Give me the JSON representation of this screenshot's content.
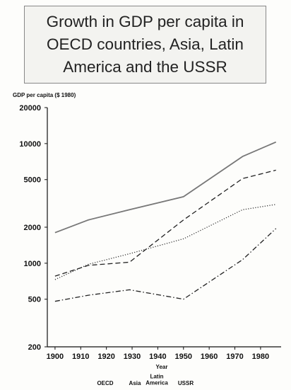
{
  "chart_data": {
    "type": "line",
    "title": "Growth in GDP per capita in OECD countries, Asia, Latin America and the USSR",
    "ylabel": "GDP per capita ($ 1980)",
    "xlabel": "Year",
    "y_scale": "log",
    "ylim": [
      200,
      20000
    ],
    "xlim": [
      1897,
      1988
    ],
    "y_ticks": [
      200,
      500,
      1000,
      2000,
      5000,
      10000,
      20000
    ],
    "x_ticks": [
      1900,
      1910,
      1920,
      1930,
      1940,
      1950,
      1960,
      1970,
      1980
    ],
    "legend_placement": "bottom",
    "series": [
      {
        "name": "OECD",
        "style": "solid",
        "color": "#777777",
        "x": [
          1900,
          1913,
          1929,
          1950,
          1973,
          1986
        ],
        "y": [
          1800,
          2300,
          2800,
          3600,
          7800,
          10300
        ]
      },
      {
        "name": "Asia",
        "style": "dashed",
        "color": "#222222",
        "x": [
          1900,
          1913,
          1929,
          1950,
          1973,
          1986
        ],
        "y": [
          780,
          960,
          1020,
          2300,
          5100,
          6000
        ]
      },
      {
        "name": "Latin America",
        "style": "dotted",
        "color": "#333333",
        "x": [
          1900,
          1913,
          1929,
          1950,
          1973,
          1986
        ],
        "y": [
          730,
          980,
          1200,
          1600,
          2800,
          3100
        ]
      },
      {
        "name": "USSR",
        "style": "dashdot",
        "color": "#222222",
        "x": [
          1900,
          1913,
          1929,
          1950,
          1973,
          1986
        ],
        "y": [
          480,
          540,
          600,
          500,
          1070,
          1950
        ]
      }
    ]
  }
}
